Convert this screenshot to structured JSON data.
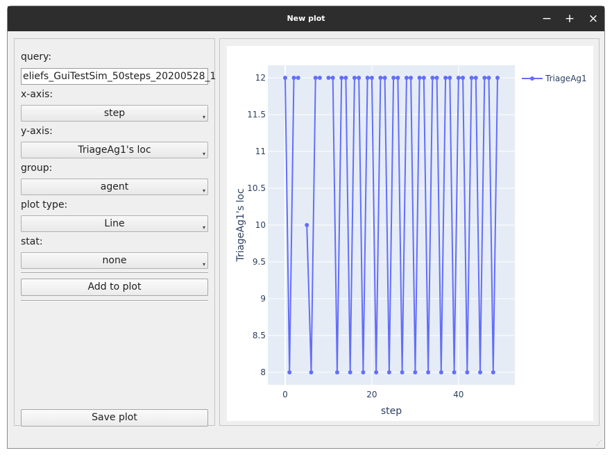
{
  "window": {
    "title": "New plot",
    "minimize_glyph": "−",
    "maximize_glyph": "+",
    "close_glyph": "×"
  },
  "form": {
    "query_label": "query:",
    "query_value": "eliefs_GuiTestSim_50steps_20200528_1",
    "xaxis_label": "x-axis:",
    "xaxis_value": "step",
    "yaxis_label": "y-axis:",
    "yaxis_value": "TriageAg1's loc",
    "group_label": "group:",
    "group_value": "agent",
    "plottype_label": "plot type:",
    "plottype_value": "Line",
    "stat_label": "stat:",
    "stat_value": "none",
    "add_button": "Add to plot",
    "save_button": "Save plot"
  },
  "chart_data": {
    "type": "line",
    "xlabel": "step",
    "ylabel": "TriageAg1's loc",
    "xlim": [
      -4,
      53
    ],
    "ylim": [
      7.83,
      12.17
    ],
    "xticks": [
      0,
      20,
      40
    ],
    "yticks": [
      8,
      8.5,
      9,
      9.5,
      10,
      10.5,
      11,
      11.5,
      12
    ],
    "ytick_labels": [
      "8",
      "8.5",
      "9",
      "9.5",
      "10",
      "10.5",
      "11",
      "11.5",
      "12"
    ],
    "grid": true,
    "legend_position": "top-right",
    "color": "#636efa",
    "plot_bg": "#e5ecf6",
    "series": [
      {
        "name": "TriageAg1",
        "segments": [
          [
            [
              0,
              12
            ],
            [
              1,
              8
            ],
            [
              2,
              12
            ],
            [
              3,
              12
            ]
          ],
          [
            [
              5,
              10
            ],
            [
              6,
              8
            ],
            [
              7,
              12
            ],
            [
              8,
              12
            ]
          ],
          [
            [
              10,
              12
            ],
            [
              11,
              12
            ],
            [
              12,
              8
            ],
            [
              13,
              12
            ],
            [
              14,
              12
            ],
            [
              15,
              8
            ],
            [
              16,
              12
            ],
            [
              17,
              12
            ],
            [
              18,
              8
            ],
            [
              19,
              12
            ],
            [
              20,
              12
            ],
            [
              21,
              8
            ],
            [
              22,
              12
            ],
            [
              23,
              12
            ],
            [
              24,
              8
            ],
            [
              25,
              12
            ],
            [
              26,
              12
            ],
            [
              27,
              8
            ],
            [
              28,
              12
            ],
            [
              29,
              12
            ],
            [
              30,
              8
            ],
            [
              31,
              12
            ],
            [
              32,
              12
            ],
            [
              33,
              8
            ],
            [
              34,
              12
            ],
            [
              35,
              12
            ],
            [
              36,
              8
            ],
            [
              37,
              12
            ],
            [
              38,
              12
            ],
            [
              39,
              8
            ],
            [
              40,
              12
            ],
            [
              41,
              12
            ],
            [
              42,
              8
            ],
            [
              43,
              12
            ],
            [
              44,
              12
            ],
            [
              45,
              8
            ],
            [
              46,
              12
            ],
            [
              47,
              12
            ],
            [
              48,
              8
            ],
            [
              49,
              12
            ]
          ]
        ]
      }
    ]
  }
}
